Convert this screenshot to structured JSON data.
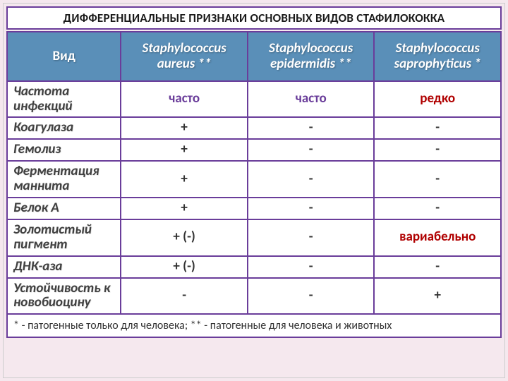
{
  "title": "ДИФФЕРЕНЦИАЛЬНЫЕ ПРИЗНАКИ ОСНОВНЫХ ВИДОВ СТАФИЛОКОККА",
  "columns": {
    "vid": "Вид",
    "c1a": "Staphylococcus",
    "c1b": "aureus **",
    "c2a": "Staphylococcus",
    "c2b": "epidermidis **",
    "c3a": "Staphylococcus",
    "c3b": "saprophyticus *"
  },
  "rows": [
    {
      "label": "Частота инфекций",
      "v1": "часто",
      "v2": "часто",
      "v3": "редко",
      "cls": "purple purple red"
    },
    {
      "label": "Коагулаза",
      "v1": "+",
      "v2": "-",
      "v3": "-",
      "cls": ""
    },
    {
      "label": "Гемолиз",
      "v1": "+",
      "v2": "-",
      "v3": "-",
      "cls": ""
    },
    {
      "label": "Ферментация маннита",
      "v1": "+",
      "v2": "-",
      "v3": "-",
      "cls": ""
    },
    {
      "label": "Белок А",
      "v1": "+",
      "v2": "-",
      "v3": "-",
      "cls": ""
    },
    {
      "label": "Золотистый пигмент",
      "v1": "+ (-)",
      "v2": "-",
      "v3": "вариабельно",
      "cls": "  red"
    },
    {
      "label": "ДНК-аза",
      "v1": "+ (-)",
      "v2": "-",
      "v3": "-",
      "cls": ""
    },
    {
      "label": "Устойчивость к новобиоцину",
      "v1": "-",
      "v2": "-",
      "v3": "+",
      "cls": ""
    }
  ],
  "footnote": "* - патогенные только для человека; ** - патогенные для человека и животных",
  "styling": {
    "border_color": "#6a3d9a",
    "header_bg": "#5a8fb8",
    "page_bg": "#f5e8ee",
    "red_color": "#b00000",
    "purple_color": "#6a3d9a",
    "title_fontsize": 17,
    "header_fontsize": 19,
    "cell_fontsize": 19,
    "footnote_fontsize": 16
  }
}
